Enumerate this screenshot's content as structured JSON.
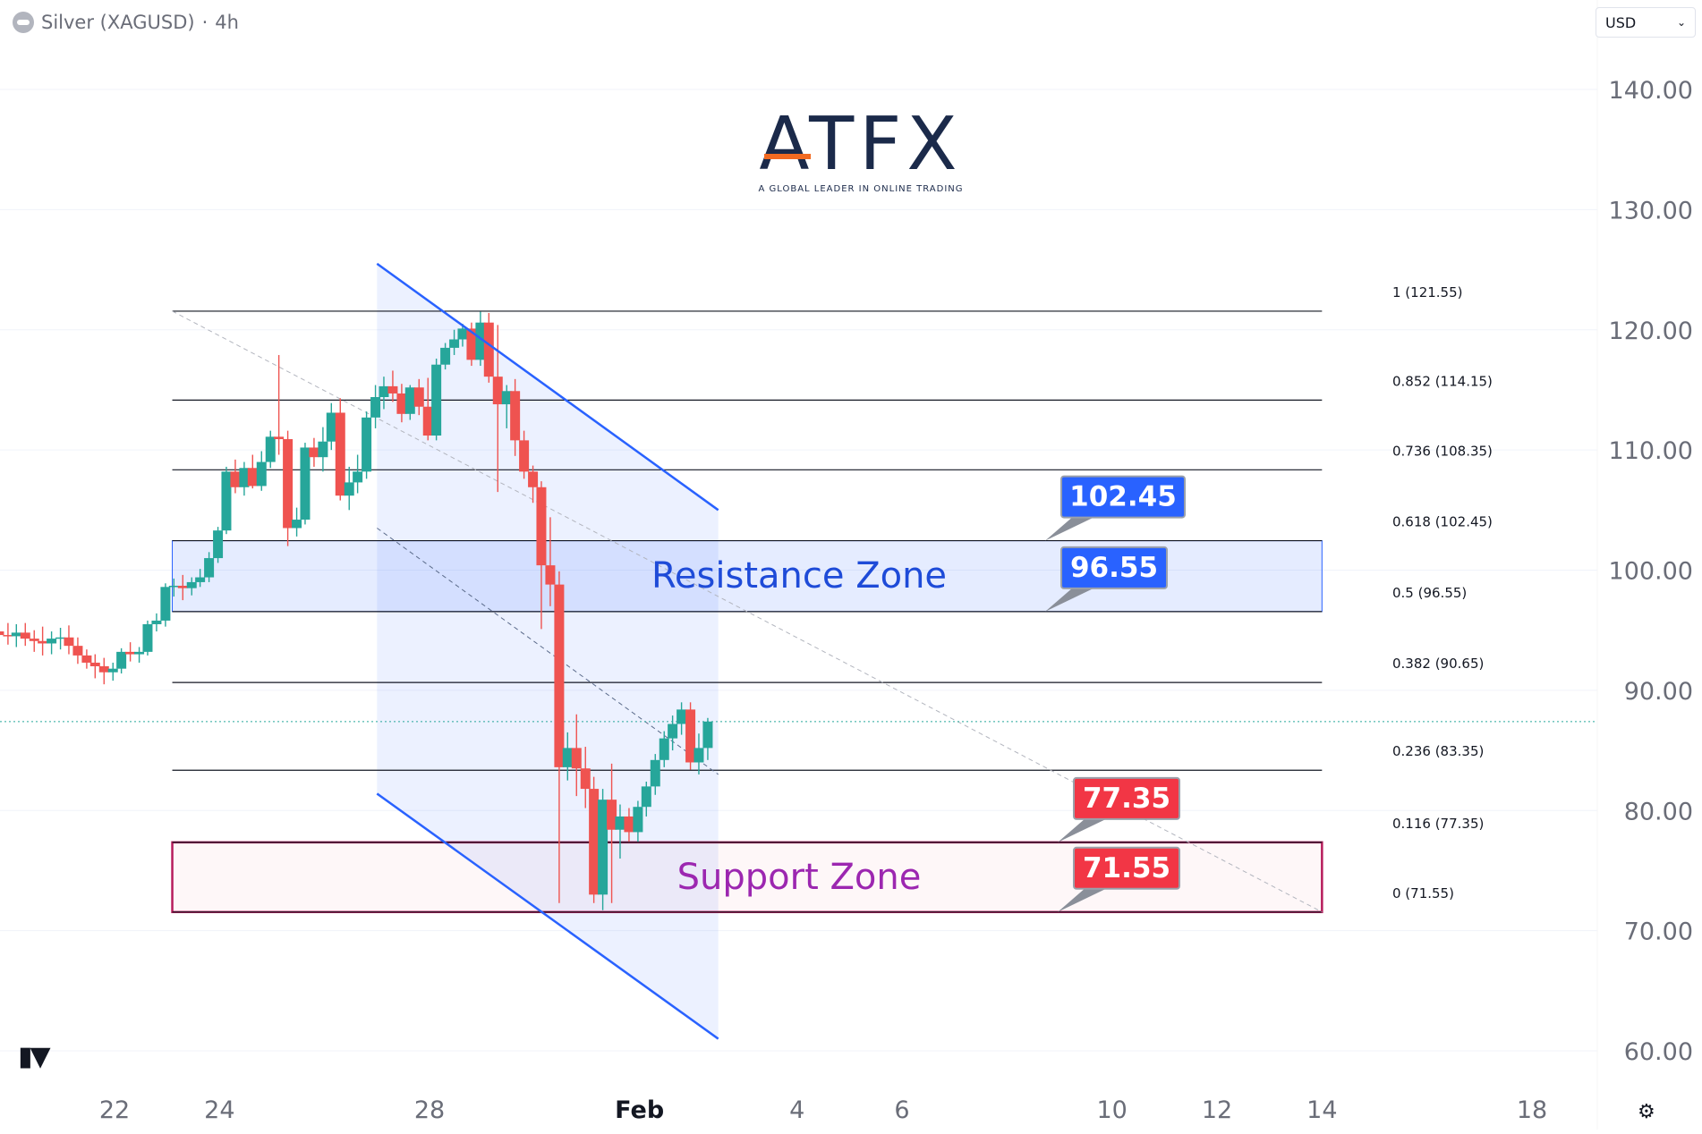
{
  "header": {
    "symbol": "Silver (XAGUSD)",
    "separator": "·",
    "interval": "4h"
  },
  "currency": {
    "value": "USD"
  },
  "logo": {
    "word": "ATFX",
    "tagline": "A GLOBAL LEADER IN ONLINE TRADING"
  },
  "colors": {
    "up": "#26a69a",
    "down": "#ef5350",
    "channel": "#2962ff",
    "resistance": "#2962ff",
    "support": "#b71c5c"
  },
  "chart_data": {
    "type": "candlestick",
    "symbol": "Silver (XAGUSD)",
    "interval": "4h",
    "ylim": [
      58,
      144
    ],
    "y_ticks": [
      "140.00",
      "130.00",
      "120.00",
      "110.00",
      "100.00",
      "90.00",
      "80.00",
      "70.00",
      "60.00"
    ],
    "x_ticks": [
      {
        "label": "22",
        "day": 22
      },
      {
        "label": "24",
        "day": 24
      },
      {
        "label": "28",
        "day": 28
      },
      {
        "label": "Feb",
        "day": 32
      },
      {
        "label": "4",
        "day": 35
      },
      {
        "label": "6",
        "day": 37
      },
      {
        "label": "10",
        "day": 41
      },
      {
        "label": "12",
        "day": 43
      },
      {
        "label": "14",
        "day": 45
      },
      {
        "label": "18",
        "day": 49
      }
    ],
    "candles": [
      {
        "t": 19.8,
        "o": 94.9,
        "h": 96.0,
        "l": 93.5,
        "c": 94.6
      },
      {
        "t": 19.97,
        "o": 94.6,
        "h": 95.6,
        "l": 93.8,
        "c": 94.5
      },
      {
        "t": 20.13,
        "o": 94.5,
        "h": 95.5,
        "l": 93.6,
        "c": 94.8
      },
      {
        "t": 20.3,
        "o": 94.8,
        "h": 95.6,
        "l": 93.7,
        "c": 94.3
      },
      {
        "t": 20.47,
        "o": 94.3,
        "h": 95.0,
        "l": 93.2,
        "c": 94.1
      },
      {
        "t": 20.63,
        "o": 94.1,
        "h": 95.3,
        "l": 92.9,
        "c": 93.9
      },
      {
        "t": 20.8,
        "o": 93.9,
        "h": 94.9,
        "l": 93.0,
        "c": 94.3
      },
      {
        "t": 20.97,
        "o": 94.3,
        "h": 95.2,
        "l": 93.4,
        "c": 94.4
      },
      {
        "t": 21.13,
        "o": 94.4,
        "h": 95.4,
        "l": 93.0,
        "c": 93.7
      },
      {
        "t": 21.3,
        "o": 93.7,
        "h": 94.4,
        "l": 92.2,
        "c": 92.9
      },
      {
        "t": 21.47,
        "o": 92.9,
        "h": 93.4,
        "l": 91.8,
        "c": 92.3
      },
      {
        "t": 21.63,
        "o": 92.3,
        "h": 93.0,
        "l": 91.0,
        "c": 92.0
      },
      {
        "t": 21.8,
        "o": 92.0,
        "h": 92.7,
        "l": 90.5,
        "c": 91.5
      },
      {
        "t": 21.97,
        "o": 91.5,
        "h": 92.3,
        "l": 90.8,
        "c": 91.8
      },
      {
        "t": 22.13,
        "o": 91.8,
        "h": 93.5,
        "l": 91.4,
        "c": 93.2
      },
      {
        "t": 22.3,
        "o": 93.2,
        "h": 94.0,
        "l": 92.4,
        "c": 93.0
      },
      {
        "t": 22.47,
        "o": 93.0,
        "h": 93.6,
        "l": 92.3,
        "c": 93.2
      },
      {
        "t": 22.63,
        "o": 93.2,
        "h": 95.8,
        "l": 92.9,
        "c": 95.5
      },
      {
        "t": 22.8,
        "o": 95.5,
        "h": 96.4,
        "l": 94.9,
        "c": 95.8
      },
      {
        "t": 22.97,
        "o": 95.8,
        "h": 98.9,
        "l": 95.3,
        "c": 98.6
      },
      {
        "t": 23.13,
        "o": 98.6,
        "h": 99.3,
        "l": 97.8,
        "c": 98.7
      },
      {
        "t": 23.3,
        "o": 98.7,
        "h": 99.6,
        "l": 97.5,
        "c": 98.5
      },
      {
        "t": 23.47,
        "o": 98.5,
        "h": 99.4,
        "l": 97.9,
        "c": 99.0
      },
      {
        "t": 23.63,
        "o": 99.0,
        "h": 100.1,
        "l": 98.6,
        "c": 99.4
      },
      {
        "t": 23.8,
        "o": 99.4,
        "h": 101.5,
        "l": 99.0,
        "c": 101.0
      },
      {
        "t": 23.97,
        "o": 101.0,
        "h": 103.6,
        "l": 100.6,
        "c": 103.3
      },
      {
        "t": 24.13,
        "o": 103.3,
        "h": 108.6,
        "l": 103.0,
        "c": 108.2
      },
      {
        "t": 24.3,
        "o": 108.2,
        "h": 109.2,
        "l": 106.4,
        "c": 106.9
      },
      {
        "t": 24.47,
        "o": 106.9,
        "h": 109.0,
        "l": 106.2,
        "c": 108.5
      },
      {
        "t": 24.63,
        "o": 108.5,
        "h": 109.6,
        "l": 106.8,
        "c": 107.0
      },
      {
        "t": 24.8,
        "o": 107.0,
        "h": 109.9,
        "l": 106.6,
        "c": 109.0
      },
      {
        "t": 24.97,
        "o": 109.0,
        "h": 111.6,
        "l": 108.5,
        "c": 111.1
      },
      {
        "t": 25.13,
        "o": 111.1,
        "h": 117.9,
        "l": 109.6,
        "c": 110.9
      },
      {
        "t": 25.3,
        "o": 110.9,
        "h": 111.6,
        "l": 102.0,
        "c": 103.5
      },
      {
        "t": 25.47,
        "o": 103.5,
        "h": 105.2,
        "l": 102.8,
        "c": 104.2
      },
      {
        "t": 25.63,
        "o": 104.2,
        "h": 110.6,
        "l": 103.8,
        "c": 110.2
      },
      {
        "t": 25.8,
        "o": 110.2,
        "h": 111.0,
        "l": 108.6,
        "c": 109.4
      },
      {
        "t": 25.97,
        "o": 109.4,
        "h": 111.9,
        "l": 108.2,
        "c": 110.7
      },
      {
        "t": 26.13,
        "o": 110.7,
        "h": 113.9,
        "l": 110.0,
        "c": 113.1
      },
      {
        "t": 26.3,
        "o": 113.1,
        "h": 114.3,
        "l": 105.8,
        "c": 106.2
      },
      {
        "t": 26.47,
        "o": 106.2,
        "h": 108.6,
        "l": 105.0,
        "c": 107.3
      },
      {
        "t": 26.63,
        "o": 107.3,
        "h": 109.6,
        "l": 106.4,
        "c": 108.2
      },
      {
        "t": 26.8,
        "o": 108.2,
        "h": 113.2,
        "l": 107.6,
        "c": 112.7
      },
      {
        "t": 26.97,
        "o": 112.7,
        "h": 115.4,
        "l": 111.8,
        "c": 114.4
      },
      {
        "t": 27.13,
        "o": 114.4,
        "h": 116.1,
        "l": 113.4,
        "c": 115.3
      },
      {
        "t": 27.3,
        "o": 115.3,
        "h": 116.6,
        "l": 114.0,
        "c": 114.7
      },
      {
        "t": 27.47,
        "o": 114.7,
        "h": 115.5,
        "l": 112.3,
        "c": 113.0
      },
      {
        "t": 27.63,
        "o": 113.0,
        "h": 115.4,
        "l": 112.5,
        "c": 115.2
      },
      {
        "t": 27.8,
        "o": 115.2,
        "h": 115.9,
        "l": 112.9,
        "c": 113.6
      },
      {
        "t": 27.97,
        "o": 113.6,
        "h": 116.0,
        "l": 110.8,
        "c": 111.2
      },
      {
        "t": 28.13,
        "o": 111.2,
        "h": 117.6,
        "l": 110.8,
        "c": 117.1
      },
      {
        "t": 28.3,
        "o": 117.1,
        "h": 118.9,
        "l": 116.7,
        "c": 118.5
      },
      {
        "t": 28.47,
        "o": 118.5,
        "h": 120.0,
        "l": 117.9,
        "c": 119.2
      },
      {
        "t": 28.63,
        "o": 119.2,
        "h": 120.5,
        "l": 118.6,
        "c": 120.1
      },
      {
        "t": 28.8,
        "o": 120.1,
        "h": 120.6,
        "l": 117.0,
        "c": 117.5
      },
      {
        "t": 28.97,
        "o": 117.5,
        "h": 121.5,
        "l": 117.0,
        "c": 120.6
      },
      {
        "t": 29.13,
        "o": 120.6,
        "h": 121.4,
        "l": 115.6,
        "c": 116.1
      },
      {
        "t": 29.3,
        "o": 116.1,
        "h": 120.4,
        "l": 106.5,
        "c": 113.8
      },
      {
        "t": 29.47,
        "o": 113.8,
        "h": 115.4,
        "l": 111.8,
        "c": 114.9
      },
      {
        "t": 29.63,
        "o": 114.9,
        "h": 115.9,
        "l": 109.5,
        "c": 110.8
      },
      {
        "t": 29.8,
        "o": 110.8,
        "h": 111.6,
        "l": 107.6,
        "c": 108.2
      },
      {
        "t": 29.97,
        "o": 108.2,
        "h": 108.7,
        "l": 105.6,
        "c": 106.9
      },
      {
        "t": 30.13,
        "o": 106.9,
        "h": 107.4,
        "l": 95.1,
        "c": 100.4
      },
      {
        "t": 30.3,
        "o": 100.4,
        "h": 104.4,
        "l": 97.0,
        "c": 98.8
      },
      {
        "t": 30.47,
        "o": 98.8,
        "h": 99.9,
        "l": 72.3,
        "c": 83.6
      },
      {
        "t": 30.63,
        "o": 83.6,
        "h": 86.5,
        "l": 82.5,
        "c": 85.2
      },
      {
        "t": 30.8,
        "o": 85.2,
        "h": 88.0,
        "l": 81.2,
        "c": 83.5
      },
      {
        "t": 30.97,
        "o": 83.5,
        "h": 85.3,
        "l": 80.2,
        "c": 81.8
      },
      {
        "t": 31.13,
        "o": 81.8,
        "h": 82.8,
        "l": 72.3,
        "c": 73.0
      },
      {
        "t": 31.3,
        "o": 73.0,
        "h": 81.8,
        "l": 71.7,
        "c": 80.9
      },
      {
        "t": 31.47,
        "o": 80.9,
        "h": 83.9,
        "l": 72.3,
        "c": 78.4
      },
      {
        "t": 31.63,
        "o": 78.4,
        "h": 80.5,
        "l": 76.0,
        "c": 79.5
      },
      {
        "t": 31.8,
        "o": 79.5,
        "h": 80.2,
        "l": 77.4,
        "c": 78.2
      },
      {
        "t": 31.97,
        "o": 78.2,
        "h": 80.8,
        "l": 77.4,
        "c": 80.3
      },
      {
        "t": 32.13,
        "o": 80.3,
        "h": 82.4,
        "l": 79.5,
        "c": 82.0
      },
      {
        "t": 32.3,
        "o": 82.0,
        "h": 84.7,
        "l": 81.3,
        "c": 84.2
      },
      {
        "t": 32.47,
        "o": 84.2,
        "h": 86.6,
        "l": 83.6,
        "c": 86.0
      },
      {
        "t": 32.63,
        "o": 86.0,
        "h": 87.9,
        "l": 85.0,
        "c": 87.2
      },
      {
        "t": 32.8,
        "o": 87.2,
        "h": 89.0,
        "l": 86.3,
        "c": 88.4
      },
      {
        "t": 32.97,
        "o": 88.4,
        "h": 89.0,
        "l": 83.4,
        "c": 84.0
      },
      {
        "t": 33.13,
        "o": 84.0,
        "h": 86.4,
        "l": 83.0,
        "c": 85.2
      },
      {
        "t": 33.3,
        "o": 85.2,
        "h": 87.7,
        "l": 84.2,
        "c": 87.4
      }
    ],
    "fib_levels": [
      {
        "label": "1 (121.55)",
        "value": 121.55
      },
      {
        "label": "0.852 (114.15)",
        "value": 114.15
      },
      {
        "label": "0.736 (108.35)",
        "value": 108.35
      },
      {
        "label": "0.618 (102.45)",
        "value": 102.45
      },
      {
        "label": "0.5 (96.55)",
        "value": 96.55
      },
      {
        "label": "0.382 (90.65)",
        "value": 90.65
      },
      {
        "label": "0.236 (83.35)",
        "value": 83.35
      },
      {
        "label": "0.116 (77.35)",
        "value": 77.35
      },
      {
        "label": "0 (71.55)",
        "value": 71.55
      }
    ],
    "fib_start_day": 23.1,
    "fib_end_day": 45.0,
    "zones": [
      {
        "name": "Resistance Zone",
        "from": 96.55,
        "to": 102.45,
        "start_day": 23.1,
        "end_day": 45.0,
        "color": "#2962ff"
      },
      {
        "name": "Support Zone",
        "from": 71.55,
        "to": 77.35,
        "start_day": 23.1,
        "end_day": 45.0,
        "color": "#b71c5c"
      }
    ],
    "price_labels": [
      {
        "text": "102.45",
        "value": 102.45,
        "color": "#2962ff"
      },
      {
        "text": "96.55",
        "value": 96.55,
        "color": "#2962ff"
      },
      {
        "text": "77.35",
        "value": 77.35,
        "color": "#f23645"
      },
      {
        "text": "71.55",
        "value": 71.55,
        "color": "#f23645"
      }
    ],
    "channel": {
      "upper": [
        {
          "day": 27.0,
          "value": 125.5
        },
        {
          "day": 33.5,
          "value": 105.0
        }
      ],
      "lower": [
        {
          "day": 27.0,
          "value": 81.4
        },
        {
          "day": 33.5,
          "value": 61.0
        }
      ],
      "mid": [
        {
          "day": 27.0,
          "value": 103.5
        },
        {
          "day": 33.5,
          "value": 83.0
        }
      ],
      "fill_start_day": 27.0,
      "fill_end_day": 33.5
    },
    "diagonal": [
      {
        "day": 23.1,
        "value": 121.55
      },
      {
        "day": 45.0,
        "value": 71.55
      }
    ],
    "last_price": 87.4
  }
}
